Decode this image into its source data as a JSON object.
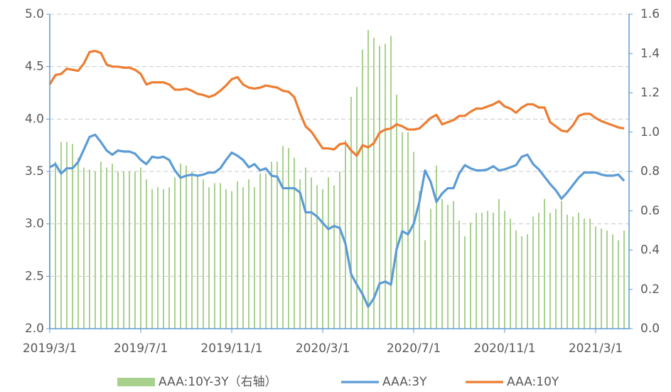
{
  "chart_data": {
    "type": "combo",
    "categories": [
      "2019/3/1",
      null,
      null,
      null,
      null,
      null,
      null,
      null,
      null,
      null,
      null,
      null,
      null,
      null,
      null,
      null,
      "2019/7/1",
      null,
      null,
      null,
      null,
      null,
      null,
      null,
      null,
      null,
      null,
      null,
      null,
      null,
      null,
      null,
      "2019/11/1",
      null,
      null,
      null,
      null,
      null,
      null,
      null,
      null,
      null,
      null,
      null,
      null,
      null,
      null,
      null,
      "2020/3/1",
      null,
      null,
      null,
      null,
      null,
      null,
      null,
      null,
      null,
      null,
      null,
      null,
      null,
      null,
      null,
      "2020/7/1",
      null,
      null,
      null,
      null,
      null,
      null,
      null,
      null,
      null,
      null,
      null,
      null,
      null,
      null,
      null,
      "2020/11/1",
      null,
      null,
      null,
      null,
      null,
      null,
      null,
      null,
      null,
      null,
      null,
      null,
      null,
      null,
      null,
      "2021/3/1",
      null,
      null,
      null,
      null,
      null
    ],
    "series": [
      {
        "name": "AAA:10Y-3Y（右轴）",
        "type": "bar",
        "axis": "y2",
        "color": "#a9d18e",
        "values": [
          0.79,
          0.85,
          0.95,
          0.95,
          0.94,
          0.87,
          0.82,
          0.81,
          0.8,
          0.85,
          0.82,
          0.84,
          0.8,
          0.8,
          0.8,
          0.8,
          0.82,
          0.76,
          0.71,
          0.72,
          0.71,
          0.72,
          0.77,
          0.84,
          0.83,
          0.8,
          0.78,
          0.76,
          0.72,
          0.74,
          0.74,
          0.71,
          0.7,
          0.75,
          0.72,
          0.76,
          0.72,
          0.79,
          0.79,
          0.85,
          0.85,
          0.93,
          0.92,
          0.87,
          0.76,
          0.82,
          0.77,
          0.73,
          0.71,
          0.77,
          0.73,
          0.8,
          0.96,
          1.18,
          1.23,
          1.42,
          1.52,
          1.48,
          1.44,
          1.45,
          1.49,
          1.19,
          1.0,
          1.0,
          0.9,
          0.7,
          0.45,
          0.61,
          0.83,
          0.66,
          0.63,
          0.65,
          0.55,
          0.47,
          0.54,
          0.59,
          0.59,
          0.6,
          0.59,
          0.66,
          0.6,
          0.56,
          0.5,
          0.47,
          0.48,
          0.57,
          0.59,
          0.66,
          0.59,
          0.61,
          0.65,
          0.58,
          0.57,
          0.59,
          0.56,
          0.56,
          0.52,
          0.51,
          0.5,
          0.48,
          0.45,
          0.5
        ]
      },
      {
        "name": "AAA:3Y",
        "type": "line",
        "color": "#5b9bd5",
        "values": [
          3.54,
          3.57,
          3.48,
          3.53,
          3.53,
          3.59,
          3.71,
          3.83,
          3.85,
          3.78,
          3.7,
          3.66,
          3.7,
          3.69,
          3.69,
          3.67,
          3.61,
          3.57,
          3.64,
          3.63,
          3.64,
          3.61,
          3.51,
          3.44,
          3.46,
          3.47,
          3.46,
          3.47,
          3.49,
          3.49,
          3.53,
          3.61,
          3.68,
          3.65,
          3.61,
          3.54,
          3.57,
          3.51,
          3.53,
          3.46,
          3.45,
          3.34,
          3.34,
          3.34,
          3.3,
          3.11,
          3.11,
          3.07,
          3.01,
          2.95,
          2.98,
          2.96,
          2.81,
          2.52,
          2.42,
          2.33,
          2.21,
          2.29,
          2.43,
          2.45,
          2.42,
          2.76,
          2.93,
          2.9,
          3.0,
          3.21,
          3.51,
          3.4,
          3.21,
          3.29,
          3.34,
          3.34,
          3.48,
          3.56,
          3.53,
          3.51,
          3.51,
          3.52,
          3.55,
          3.51,
          3.52,
          3.54,
          3.56,
          3.64,
          3.66,
          3.57,
          3.52,
          3.45,
          3.38,
          3.32,
          3.24,
          3.3,
          3.37,
          3.44,
          3.49,
          3.49,
          3.49,
          3.47,
          3.46,
          3.46,
          3.47,
          3.41
        ]
      },
      {
        "name": "AAA:10Y",
        "type": "line",
        "color": "#ed7d31",
        "values": [
          4.33,
          4.42,
          4.43,
          4.48,
          4.47,
          4.46,
          4.53,
          4.64,
          4.65,
          4.63,
          4.52,
          4.5,
          4.5,
          4.49,
          4.49,
          4.47,
          4.43,
          4.33,
          4.35,
          4.35,
          4.35,
          4.33,
          4.28,
          4.28,
          4.29,
          4.27,
          4.24,
          4.23,
          4.21,
          4.23,
          4.27,
          4.32,
          4.38,
          4.4,
          4.33,
          4.3,
          4.29,
          4.3,
          4.32,
          4.31,
          4.3,
          4.27,
          4.26,
          4.21,
          4.06,
          3.93,
          3.88,
          3.8,
          3.72,
          3.72,
          3.71,
          3.76,
          3.77,
          3.7,
          3.65,
          3.75,
          3.73,
          3.77,
          3.87,
          3.9,
          3.91,
          3.95,
          3.93,
          3.9,
          3.9,
          3.91,
          3.96,
          4.01,
          4.04,
          3.95,
          3.97,
          3.99,
          4.03,
          4.03,
          4.07,
          4.1,
          4.1,
          4.12,
          4.14,
          4.17,
          4.12,
          4.1,
          4.06,
          4.11,
          4.14,
          4.14,
          4.11,
          4.11,
          3.97,
          3.93,
          3.89,
          3.88,
          3.94,
          4.03,
          4.05,
          4.05,
          4.01,
          3.98,
          3.96,
          3.94,
          3.92,
          3.91
        ]
      }
    ],
    "ylim": [
      2,
      5
    ],
    "yticks": [
      {
        "value": 2,
        "label": "2.0"
      },
      2.5,
      {
        "value": 3,
        "label": "3.0"
      },
      3.5,
      {
        "value": 4,
        "label": "4.0"
      },
      4.5,
      {
        "value": 5,
        "label": "5.0"
      }
    ],
    "y2lim": [
      0,
      1.6
    ],
    "y2ticks": [
      {
        "value": 0,
        "label": "0.0"
      },
      0.2,
      0.4,
      0.6,
      0.8,
      {
        "value": 1,
        "label": "1.0"
      },
      1.2,
      1.4,
      1.6
    ],
    "grid": true,
    "legend": "bottom"
  }
}
